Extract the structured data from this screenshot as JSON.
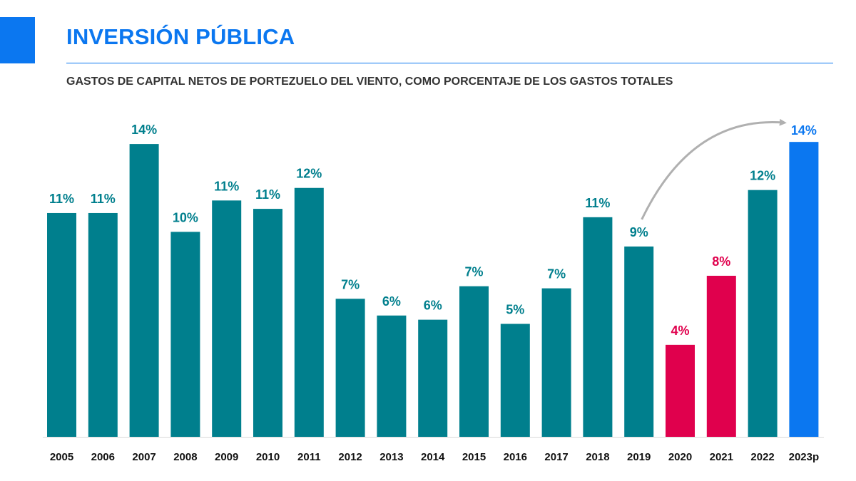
{
  "header": {
    "title": "INVERSIÓN PÚBLICA"
  },
  "colors": {
    "accent": "#0b77f0",
    "teal": "#007f8d",
    "crimson": "#e0004d",
    "highlight": "#0b77f0",
    "arrow": "#b0b0b0"
  },
  "chart_data": {
    "type": "bar",
    "title": "",
    "subtitle": "GASTOS DE CAPITAL NETOS DE PORTEZUELO DEL VIENTO, COMO PORCENTAJE DE LOS GASTOS TOTALES",
    "xlabel": "",
    "ylabel": "",
    "ylim": [
      0,
      14
    ],
    "grid": false,
    "legend": "none",
    "categories": [
      "2005",
      "2006",
      "2007",
      "2008",
      "2009",
      "2010",
      "2011",
      "2012",
      "2013",
      "2014",
      "2015",
      "2016",
      "2017",
      "2018",
      "2019",
      "2020",
      "2021",
      "2022",
      "2023p"
    ],
    "values": [
      10.7,
      10.7,
      14.0,
      9.8,
      11.3,
      10.9,
      11.9,
      6.6,
      5.8,
      5.6,
      7.2,
      5.4,
      7.1,
      10.5,
      9.1,
      4.4,
      7.7,
      11.8,
      14.1
    ],
    "data_labels": [
      "11%",
      "11%",
      "14%",
      "10%",
      "11%",
      "11%",
      "12%",
      "7%",
      "6%",
      "6%",
      "7%",
      "5%",
      "7%",
      "11%",
      "9%",
      "4%",
      "8%",
      "12%",
      "14%"
    ],
    "bar_colors": [
      "teal",
      "teal",
      "teal",
      "teal",
      "teal",
      "teal",
      "teal",
      "teal",
      "teal",
      "teal",
      "teal",
      "teal",
      "teal",
      "teal",
      "teal",
      "crimson",
      "crimson",
      "teal",
      "highlight"
    ],
    "annotations": [
      "arrow from 2019 to 2023p"
    ]
  }
}
